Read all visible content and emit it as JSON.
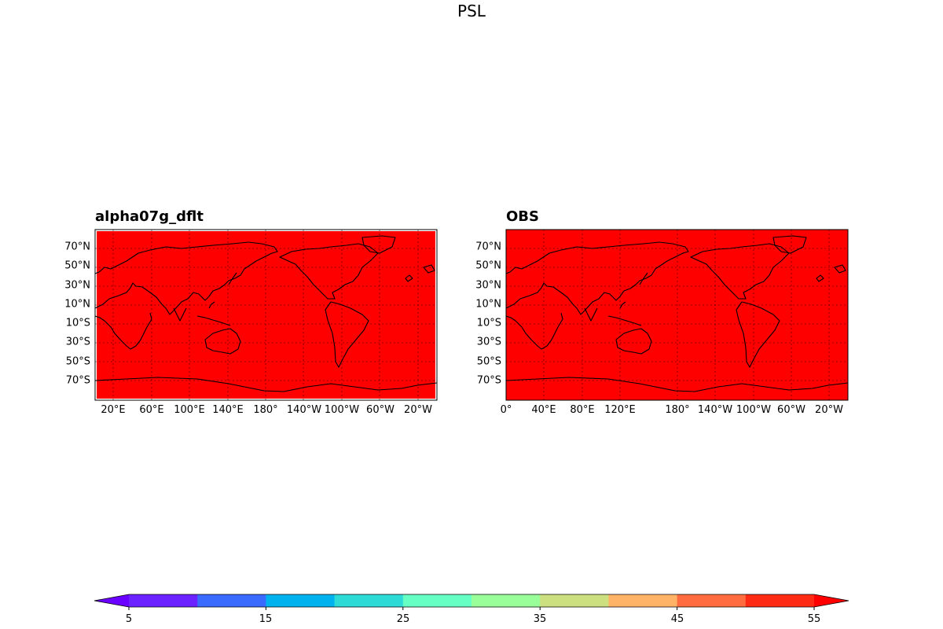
{
  "figure": {
    "suptitle": "PSL"
  },
  "panels": [
    {
      "title": "alpha07g_dflt",
      "fill_color": "#ff0000",
      "lat_labels": [
        "70°N",
        "50°N",
        "30°N",
        "10°N",
        "10°S",
        "30°S",
        "50°S",
        "70°S"
      ],
      "lon_labels": [
        "20°E",
        "60°E",
        "100°E",
        "140°E",
        "180°",
        "140°W",
        "100°W",
        "60°W",
        "20°W"
      ]
    },
    {
      "title": "OBS",
      "fill_color": "#ff0000",
      "lat_labels": [
        "70°N",
        "50°N",
        "30°N",
        "10°N",
        "10°S",
        "30°S",
        "50°S",
        "70°S"
      ],
      "lon_labels": [
        "0°",
        "40°E",
        "80°E",
        "120°E",
        "180°",
        "140°W",
        "100°W",
        "60°W",
        "20°W"
      ]
    }
  ],
  "colorbar": {
    "levels": [
      5,
      10,
      15,
      20,
      25,
      30,
      35,
      40,
      45,
      50,
      55
    ],
    "tick_labels": [
      "5",
      "15",
      "25",
      "35",
      "45",
      "55"
    ],
    "colors": [
      "#6a00ff",
      "#6b22ff",
      "#3a6bff",
      "#00b2ee",
      "#2ddad6",
      "#66ffc4",
      "#99ff99",
      "#cde07f",
      "#ffb366",
      "#ff6c3f",
      "#ff2a14",
      "#ff0000"
    ],
    "extend": "both"
  },
  "chart_data": [
    {
      "type": "map",
      "title": "alpha07g_dflt",
      "variable": "PSL",
      "field_level_range": [
        50,
        55
      ]
    },
    {
      "type": "map",
      "title": "OBS",
      "variable": "PSL",
      "field_level_range": [
        50,
        55
      ]
    }
  ]
}
